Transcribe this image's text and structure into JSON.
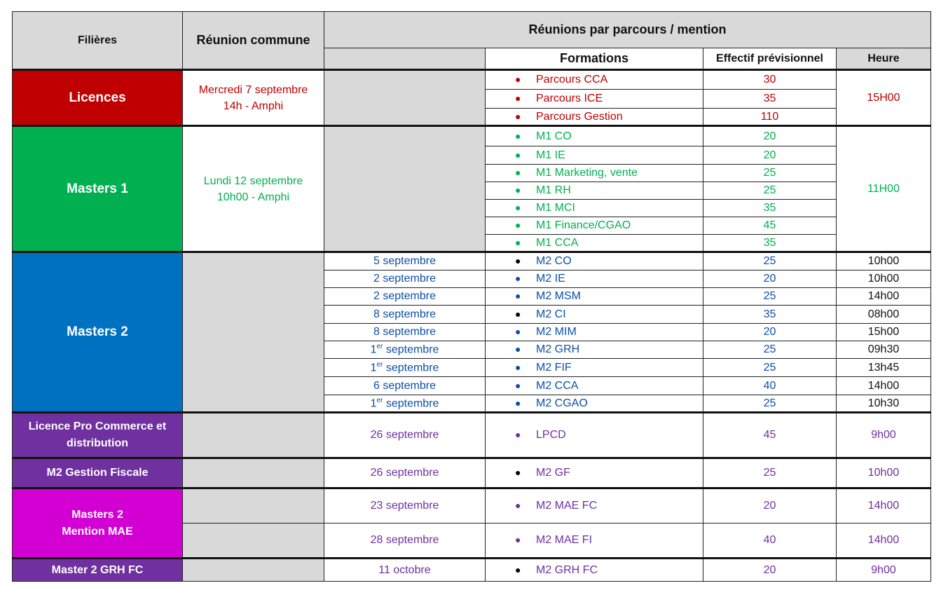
{
  "header": {
    "filieres": "Filières",
    "reunion_commune": "Réunion commune",
    "reunions_parcours": "Réunions par parcours / mention",
    "formations": "Formations",
    "effectif": "Effectif prévisionnel",
    "heure": "Heure"
  },
  "colors": {
    "licences": "#c00000",
    "masters1": "#00b050",
    "masters2": "#0070c0",
    "purple": "#7030a0",
    "magenta": "#d300d3"
  },
  "licences": {
    "name": "Licences",
    "reunion_line1": "Mercredi 7 septembre",
    "reunion_line2": "14h - Amphi",
    "heure": "15H00",
    "rows": [
      {
        "formation": "Parcours CCA",
        "effectif": "30"
      },
      {
        "formation": "Parcours ICE",
        "effectif": "35"
      },
      {
        "formation": "Parcours Gestion",
        "effectif": "110"
      }
    ]
  },
  "masters1": {
    "name": "Masters 1",
    "reunion_line1": "Lundi 12 septembre",
    "reunion_line2": "10h00 - Amphi",
    "heure": "11H00",
    "rows": [
      {
        "formation": "M1 CO",
        "effectif": "20"
      },
      {
        "formation": "M1 IE",
        "effectif": "20"
      },
      {
        "formation": "M1 Marketing, vente",
        "effectif": "25"
      },
      {
        "formation": "M1 RH",
        "effectif": "25"
      },
      {
        "formation": "M1 MCI",
        "effectif": "35"
      },
      {
        "formation": "M1 Finance/CGAO",
        "effectif": "45"
      },
      {
        "formation": "M1 CCA",
        "effectif": "35"
      }
    ]
  },
  "masters2": {
    "name": "Masters 2",
    "sup_er": "er",
    "rows": [
      {
        "date": "5 septembre",
        "formation": "M2 CO",
        "effectif": "25",
        "heure": "10h00"
      },
      {
        "date": "2 septembre",
        "formation": "M2 IE",
        "effectif": "20",
        "heure": "10h00"
      },
      {
        "date": "2 septembre",
        "formation": "M2 MSM",
        "effectif": "25",
        "heure": "14h00"
      },
      {
        "date": "8 septembre",
        "formation": "M2 CI",
        "effectif": "35",
        "heure": "08h00"
      },
      {
        "date": "8 septembre",
        "formation": "M2 MIM",
        "effectif": "20",
        "heure": "15h00"
      },
      {
        "date_num": "1",
        "date_rest": " septembre",
        "formation": "M2 GRH",
        "effectif": "25",
        "heure": "09h30"
      },
      {
        "date_num": "1",
        "date_rest": " septembre",
        "formation": "M2 FIF",
        "effectif": "25",
        "heure": "13h45"
      },
      {
        "date": "6 septembre",
        "formation": "M2 CCA",
        "effectif": "40",
        "heure": "14h00"
      },
      {
        "date_num": "1",
        "date_rest": " septembre",
        "formation": "M2 CGAO",
        "effectif": "25",
        "heure": "10h30"
      }
    ]
  },
  "lpcd": {
    "name": "Licence Pro Commerce et distribution",
    "date": "26 septembre",
    "formation": "LPCD",
    "effectif": "45",
    "heure": "9h00"
  },
  "gf": {
    "name": "M2 Gestion Fiscale",
    "date": "26 septembre",
    "formation": "M2 GF",
    "effectif": "25",
    "heure": "10h00"
  },
  "mae": {
    "name_line1": "Masters 2",
    "name_line2": "Mention MAE",
    "rows": [
      {
        "date": "23 septembre",
        "formation": "M2 MAE FC",
        "effectif": "20",
        "heure": "14h00"
      },
      {
        "date": "28 septembre",
        "formation": "M2 MAE FI",
        "effectif": "40",
        "heure": "14h00"
      }
    ]
  },
  "grhfc": {
    "name": "Master 2 GRH FC",
    "date": "11 octobre",
    "formation": "M2 GRH FC",
    "effectif": "20",
    "heure": "9h00"
  }
}
